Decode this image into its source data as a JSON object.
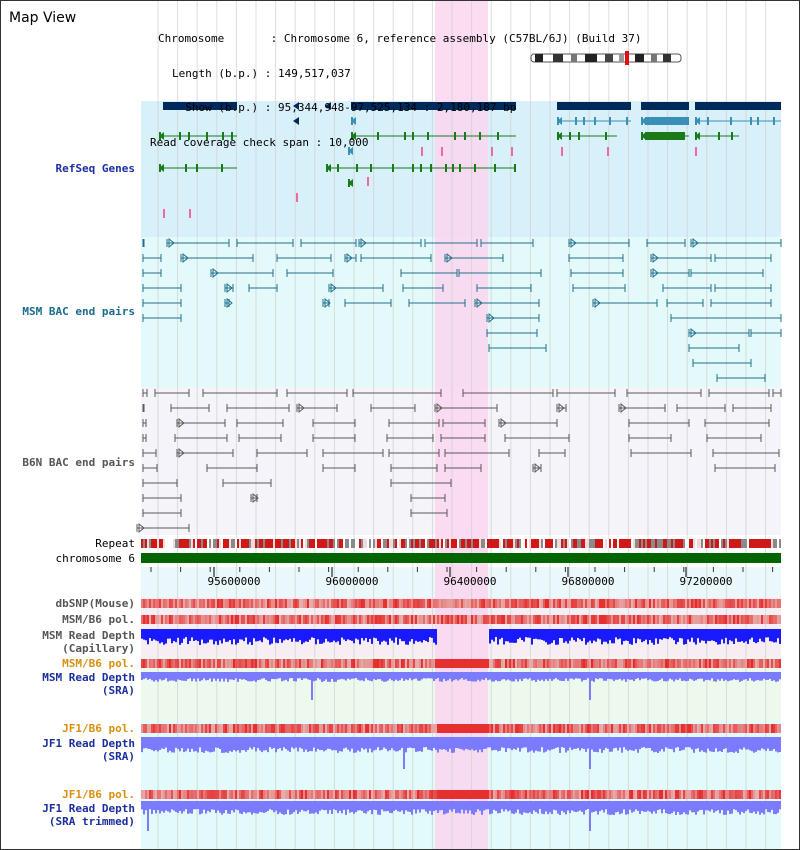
{
  "view": {
    "title": "Map View",
    "info_lines": [
      "Chromosome       : Chromosome 6, reference assembly (C57BL/6J) (Build 37)",
      "Length (b.p.) : 149,517,037",
      "  Show (b.p.) : 95,344,948-97,525,134 : 2,180,187 bp",
      "Read coverage check span : 10,000"
    ]
  },
  "tracks": {
    "refseq": "RefSeq Genes",
    "msm_bac": "MSM BAC end pairs",
    "b6n_bac": "B6N BAC end pairs",
    "repeat": "Repeat",
    "chromosome": "chromosome 6",
    "dbsnp": "dbSNP(Mouse)",
    "msm_b6_pol": "MSM/B6 pol.",
    "msm_depth_cap_1": "MSM Read Depth",
    "msm_depth_cap_2": "(Capillary)",
    "msm_b6_pol_sra": "MSM/B6 pol.",
    "msm_depth_sra_1": "MSM Read Depth",
    "msm_depth_sra_2": "(SRA)",
    "jf1_pol": "JF1/B6 pol.",
    "jf1_depth_1": "JF1 Read Depth",
    "jf1_depth_2": "(SRA)",
    "jf1_pol_2": "JF1/B6 pol.",
    "jf1_trim_1": "JF1 Read Depth",
    "jf1_trim_2": "(SRA trimmed)"
  },
  "axis": {
    "ticks": [
      "95600000",
      "96000000",
      "96400000",
      "96800000",
      "97200000"
    ]
  },
  "colors": {
    "highlight": "#fad6ee",
    "refseq_bg": "#d8f0fa",
    "msm_bg": "#e4fafa",
    "b6n_bg": "#f4f4fa",
    "chromosome": "#006400",
    "gene_dark": "#002a5c",
    "gene_light": "#3a8fb7",
    "gene_green": "#1a7a1a",
    "msm_pair": "#1f6f8b",
    "b6n_pair": "#5a5a5a",
    "depth_blue": "#1a1aff",
    "depth_light": "#7b7bff"
  }
}
